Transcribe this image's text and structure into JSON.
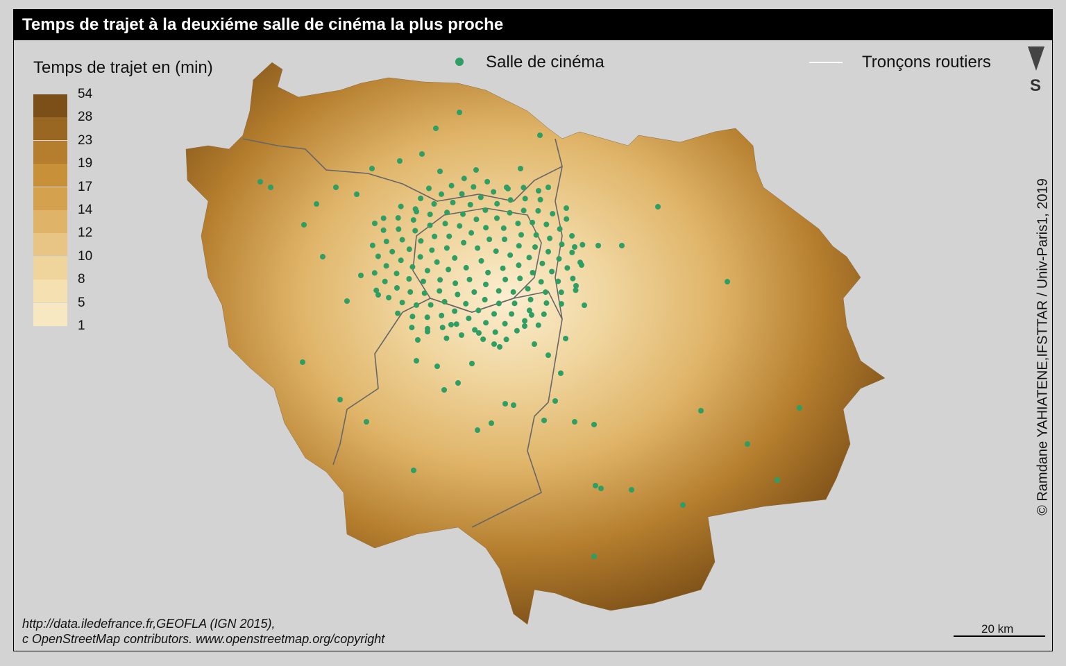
{
  "title": "Temps de trajet à la deuxiéme salle de cinéma la plus proche",
  "legend": {
    "title": "Temps de trajet en (min)",
    "classes": [
      {
        "label": "54",
        "color": "#7b4f17"
      },
      {
        "label": "28",
        "color": "#9a6722"
      },
      {
        "label": "23",
        "color": "#b57e2e"
      },
      {
        "label": "19",
        "color": "#c89038"
      },
      {
        "label": "17",
        "color": "#d4a24e"
      },
      {
        "label": "14",
        "color": "#dfb468"
      },
      {
        "label": "12",
        "color": "#e8c585"
      },
      {
        "label": "10",
        "color": "#efd49c"
      },
      {
        "label": "8",
        "color": "#f4e0b0"
      },
      {
        "label": "5",
        "color": "#f8e8c2"
      },
      {
        "label": "1",
        "color": "#fbeed0"
      }
    ]
  },
  "layers": {
    "cinema": {
      "label": "Salle de cinéma",
      "color": "#2e9e63"
    },
    "roads": {
      "label": "Tronçons routiers",
      "color": "#ffffff"
    }
  },
  "north_arrow": {
    "label": "S",
    "icon": "north-arrow-icon"
  },
  "credit": "© Ramdane YAHIATENE,IFSTTAR / Univ-Paris1, 2019",
  "source": {
    "line1": "http://data.iledefrance.fr,GEOFLA (IGN 2015),",
    "line2": "c OpenStreetMap contributors. www.openstreetmap.org/copyright"
  },
  "scale": {
    "label": "20 km"
  }
}
